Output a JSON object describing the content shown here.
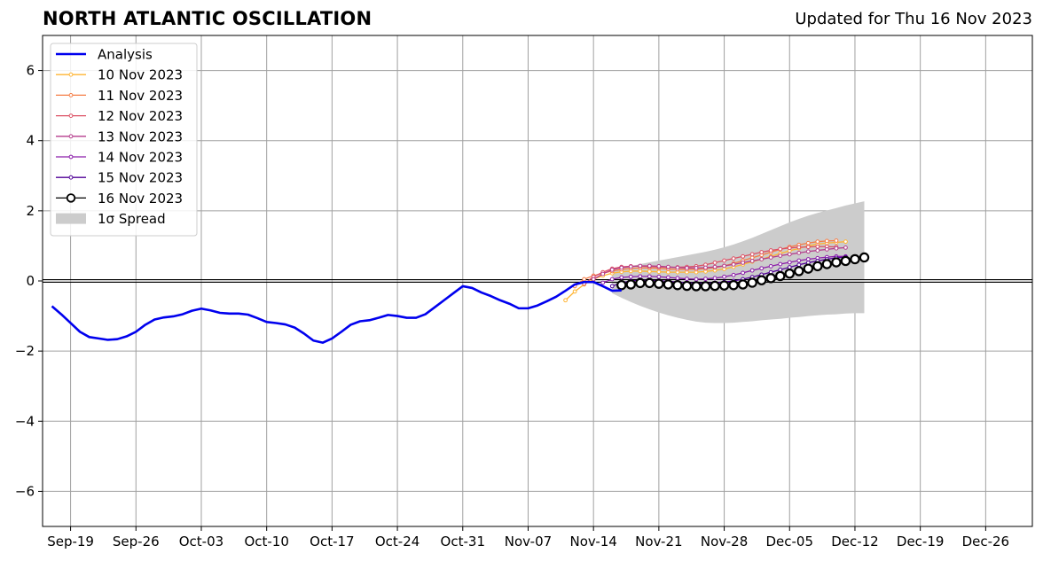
{
  "header": {
    "title": "NORTH ATLANTIC OSCILLATION",
    "updated": "Updated for Thu 16 Nov 2023"
  },
  "chart_data": {
    "type": "line",
    "title": "NORTH ATLANTIC OSCILLATION",
    "xlabel": "",
    "ylabel": "",
    "ylim": [
      -7,
      7
    ],
    "xlim": [
      "2023-09-16",
      "2023-12-31"
    ],
    "grid": true,
    "legend_position": "top-left",
    "y_ticks": [
      -6,
      -4,
      -2,
      0,
      2,
      4,
      6
    ],
    "y_tick_labels": [
      "−6",
      "−4",
      "−2",
      "0",
      "2",
      "4",
      "6"
    ],
    "x_ticks": [
      "2023-09-19",
      "2023-09-26",
      "2023-10-03",
      "2023-10-10",
      "2023-10-17",
      "2023-10-24",
      "2023-10-31",
      "2023-11-07",
      "2023-11-14",
      "2023-11-21",
      "2023-11-28",
      "2023-12-05",
      "2023-12-12",
      "2023-12-19",
      "2023-12-26"
    ],
    "x_tick_labels": [
      "Sep-19",
      "Sep-26",
      "Oct-03",
      "Oct-10",
      "Oct-17",
      "Oct-24",
      "Oct-31",
      "Nov-07",
      "Nov-14",
      "Nov-21",
      "Nov-28",
      "Dec-05",
      "Dec-12",
      "Dec-19",
      "Dec-26"
    ],
    "analysis": {
      "name": "Analysis",
      "color": "#0000ee",
      "start": "2023-09-17",
      "values": [
        -0.72,
        -0.95,
        -1.2,
        -1.45,
        -1.6,
        -1.64,
        -1.68,
        -1.66,
        -1.58,
        -1.45,
        -1.25,
        -1.1,
        -1.04,
        -1.01,
        -0.95,
        -0.85,
        -0.79,
        -0.84,
        -0.91,
        -0.93,
        -0.93,
        -0.96,
        -1.06,
        -1.17,
        -1.2,
        -1.24,
        -1.33,
        -1.5,
        -1.7,
        -1.76,
        -1.64,
        -1.45,
        -1.25,
        -1.15,
        -1.12,
        -1.05,
        -0.97,
        -1.0,
        -1.05,
        -1.05,
        -0.95,
        -0.75,
        -0.55,
        -0.35,
        -0.15,
        -0.2,
        -0.33,
        -0.43,
        -0.55,
        -0.65,
        -0.78,
        -0.78,
        -0.7,
        -0.58,
        -0.45,
        -0.28,
        -0.1,
        -0.03,
        -0.03,
        -0.15,
        -0.28,
        -0.27
      ]
    },
    "series": [
      {
        "name": "10 Nov 2023",
        "color": "#ffb432",
        "start": "2023-11-11",
        "values": [
          -0.55,
          -0.3,
          -0.1,
          0.05,
          0.15,
          0.22,
          0.26,
          0.28,
          0.28,
          0.27,
          0.26,
          0.25,
          0.25,
          0.25,
          0.25,
          0.27,
          0.3,
          0.34,
          0.4,
          0.47,
          0.55,
          0.62,
          0.7,
          0.78,
          0.86,
          0.93,
          1.0,
          1.05,
          1.08,
          1.1,
          1.12
        ]
      },
      {
        "name": "11 Nov 2023",
        "color": "#f57d46",
        "start": "2023-11-12",
        "values": [
          -0.15,
          0.05,
          0.15,
          0.22,
          0.28,
          0.33,
          0.36,
          0.37,
          0.37,
          0.36,
          0.34,
          0.33,
          0.33,
          0.33,
          0.35,
          0.38,
          0.43,
          0.5,
          0.58,
          0.66,
          0.74,
          0.82,
          0.9,
          0.97,
          1.03,
          1.08,
          1.12,
          1.14,
          1.15
        ]
      },
      {
        "name": "12 Nov 2023",
        "color": "#dc5064",
        "start": "2023-11-13",
        "values": [
          -0.08,
          0.12,
          0.25,
          0.35,
          0.4,
          0.42,
          0.42,
          0.41,
          0.4,
          0.39,
          0.39,
          0.4,
          0.42,
          0.46,
          0.52,
          0.58,
          0.64,
          0.7,
          0.76,
          0.82,
          0.87,
          0.91,
          0.94,
          0.96,
          0.97,
          0.98,
          0.98,
          0.97
        ]
      },
      {
        "name": "13 Nov 2023",
        "color": "#b43c8c",
        "start": "2023-11-14",
        "values": [
          0.05,
          0.2,
          0.32,
          0.38,
          0.41,
          0.43,
          0.43,
          0.42,
          0.4,
          0.38,
          0.37,
          0.37,
          0.38,
          0.4,
          0.43,
          0.47,
          0.52,
          0.57,
          0.62,
          0.67,
          0.72,
          0.76,
          0.8,
          0.84,
          0.87,
          0.9,
          0.93,
          0.95
        ]
      },
      {
        "name": "14 Nov 2023",
        "color": "#8c1eaa",
        "start": "2023-11-15",
        "values": [
          -0.05,
          0.05,
          0.1,
          0.12,
          0.13,
          0.13,
          0.12,
          0.1,
          0.08,
          0.06,
          0.05,
          0.06,
          0.08,
          0.12,
          0.17,
          0.23,
          0.3,
          0.36,
          0.42,
          0.48,
          0.53,
          0.58,
          0.62,
          0.65,
          0.68,
          0.7,
          0.7
        ]
      },
      {
        "name": "15 Nov 2023",
        "color": "#500096",
        "start": "2023-11-16",
        "values": [
          -0.15,
          -0.05,
          0.0,
          0.02,
          0.02,
          0.01,
          -0.01,
          -0.03,
          -0.05,
          -0.06,
          -0.06,
          -0.05,
          -0.03,
          0.0,
          0.05,
          0.11,
          0.18,
          0.25,
          0.32,
          0.39,
          0.46,
          0.52,
          0.57,
          0.62,
          0.66,
          0.68
        ]
      },
      {
        "name": "16 Nov 2023",
        "color": "#000000",
        "start": "2023-11-17",
        "values": [
          -0.12,
          -0.1,
          -0.06,
          -0.06,
          -0.08,
          -0.1,
          -0.12,
          -0.14,
          -0.15,
          -0.15,
          -0.14,
          -0.13,
          -0.12,
          -0.1,
          -0.05,
          0.02,
          0.08,
          0.14,
          0.21,
          0.28,
          0.35,
          0.42,
          0.48,
          0.53,
          0.57,
          0.62,
          0.67
        ]
      }
    ],
    "spread": {
      "name": "1σ Spread",
      "color": "#cccccc",
      "start": "2023-11-16",
      "upper": [
        0.3,
        0.36,
        0.42,
        0.48,
        0.53,
        0.58,
        0.63,
        0.68,
        0.73,
        0.78,
        0.83,
        0.89,
        0.96,
        1.04,
        1.13,
        1.23,
        1.34,
        1.45,
        1.56,
        1.67,
        1.77,
        1.86,
        1.94,
        2.01,
        2.08,
        2.15,
        2.21,
        2.27
      ],
      "lower": [
        -0.35,
        -0.48,
        -0.6,
        -0.71,
        -0.81,
        -0.9,
        -0.98,
        -1.05,
        -1.11,
        -1.16,
        -1.19,
        -1.2,
        -1.2,
        -1.19,
        -1.17,
        -1.15,
        -1.12,
        -1.1,
        -1.08,
        -1.05,
        -1.03,
        -1.0,
        -0.98,
        -0.96,
        -0.95,
        -0.93,
        -0.92,
        -0.92
      ]
    },
    "legend": [
      "Analysis",
      "10 Nov 2023",
      "11 Nov 2023",
      "12 Nov 2023",
      "13 Nov 2023",
      "14 Nov 2023",
      "15 Nov 2023",
      "16 Nov 2023",
      "1σ Spread"
    ]
  }
}
